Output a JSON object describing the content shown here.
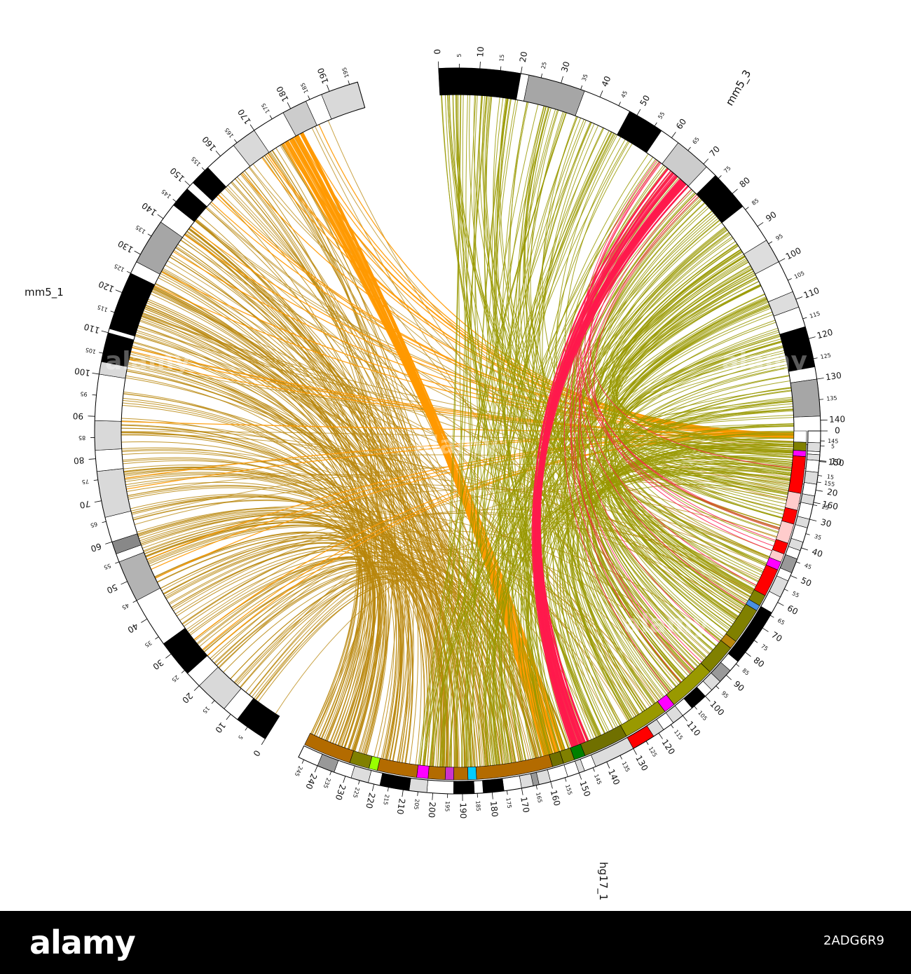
{
  "diagram": {
    "type": "circos-synteny",
    "chromosomes": [
      {
        "id": "mm5_1",
        "label": "mm5_1",
        "start_deg": 212,
        "end_deg": 344,
        "length": 197,
        "major_ticks": [
          0,
          10,
          20,
          30,
          40,
          50,
          60,
          70,
          80,
          90,
          100,
          110,
          120,
          130,
          140,
          150,
          160,
          170,
          180,
          190
        ],
        "minor_ticks": [
          5,
          15,
          25,
          35,
          45,
          55,
          65,
          75,
          85,
          95,
          105,
          115,
          125,
          135,
          145,
          155,
          165,
          175,
          185,
          195
        ],
        "bands": [
          [
            0,
            8,
            "#000000"
          ],
          [
            8,
            12,
            "#ffffff"
          ],
          [
            12,
            20,
            "#d9d9d9"
          ],
          [
            20,
            24,
            "#ffffff"
          ],
          [
            24,
            33,
            "#000000"
          ],
          [
            33,
            45,
            "#ffffff"
          ],
          [
            45,
            55,
            "#b3b3b3"
          ],
          [
            55,
            57,
            "#ffffff"
          ],
          [
            57,
            60,
            "#888888"
          ],
          [
            60,
            66,
            "#ffffff"
          ],
          [
            66,
            77,
            "#d9d9d9"
          ],
          [
            77,
            82,
            "#ffffff"
          ],
          [
            82,
            89,
            "#d9d9d9"
          ],
          [
            89,
            100,
            "#ffffff"
          ],
          [
            100,
            103,
            "#d9d9d9"
          ],
          [
            103,
            110,
            "#000000"
          ],
          [
            110,
            111,
            "#ffffff"
          ],
          [
            111,
            125,
            "#000000"
          ],
          [
            125,
            128,
            "#ffffff"
          ],
          [
            128,
            139,
            "#a6a6a6"
          ],
          [
            139,
            144,
            "#ffffff"
          ],
          [
            144,
            149,
            "#000000"
          ],
          [
            149,
            151,
            "#ffffff"
          ],
          [
            151,
            156,
            "#000000"
          ],
          [
            156,
            164,
            "#ffffff"
          ],
          [
            164,
            170,
            "#d9d9d9"
          ],
          [
            170,
            178,
            "#ffffff"
          ],
          [
            178,
            184,
            "#cccccc"
          ],
          [
            184,
            188,
            "#ffffff"
          ],
          [
            188,
            197,
            "#d9d9d9"
          ]
        ]
      },
      {
        "id": "mm5_3",
        "label": "mm5_3",
        "start_deg": 357,
        "end_deg": 462,
        "length": 161,
        "major_ticks": [
          0,
          10,
          20,
          30,
          40,
          50,
          60,
          70,
          80,
          90,
          100,
          110,
          120,
          130,
          140,
          150,
          160
        ],
        "minor_ticks": [
          5,
          15,
          25,
          35,
          45,
          55,
          65,
          75,
          85,
          95,
          105,
          115,
          125,
          135,
          145,
          155
        ],
        "bands": [
          [
            0,
            20,
            "#000000"
          ],
          [
            20,
            22,
            "#ffffff"
          ],
          [
            22,
            36,
            "#a6a6a6"
          ],
          [
            36,
            48,
            "#ffffff"
          ],
          [
            48,
            57,
            "#000000"
          ],
          [
            57,
            62,
            "#ffffff"
          ],
          [
            62,
            71,
            "#cccccc"
          ],
          [
            71,
            74,
            "#ffffff"
          ],
          [
            74,
            84,
            "#000000"
          ],
          [
            84,
            94,
            "#ffffff"
          ],
          [
            94,
            100,
            "#dddddd"
          ],
          [
            100,
            108,
            "#ffffff"
          ],
          [
            108,
            112,
            "#dddddd"
          ],
          [
            112,
            117,
            "#ffffff"
          ],
          [
            117,
            127,
            "#000000"
          ],
          [
            127,
            130,
            "#ffffff"
          ],
          [
            130,
            139,
            "#a6a6a6"
          ],
          [
            139,
            146,
            "#ffffff"
          ],
          [
            146,
            152,
            "#dddddd"
          ],
          [
            152,
            156,
            "#ffffff"
          ],
          [
            156,
            161,
            "#dddddd"
          ]
        ]
      },
      {
        "id": "hg17_1",
        "label": "hg17_1",
        "start_deg": 90,
        "end_deg": 206,
        "length": 247,
        "major_ticks": [
          0,
          10,
          20,
          30,
          40,
          50,
          60,
          70,
          80,
          90,
          100,
          110,
          120,
          130,
          140,
          150,
          160,
          170,
          180,
          190,
          200,
          210,
          220,
          230,
          240
        ],
        "minor_ticks": [
          5,
          15,
          25,
          35,
          45,
          55,
          65,
          75,
          85,
          95,
          105,
          115,
          125,
          135,
          145,
          155,
          165,
          175,
          185,
          195,
          205,
          215,
          225,
          235,
          245
        ],
        "bands": [
          [
            0,
            4,
            "#ffffff"
          ],
          [
            4,
            7,
            "#dddddd"
          ],
          [
            7,
            8,
            "#ffffff"
          ],
          [
            8,
            10,
            "#dddddd"
          ],
          [
            10,
            14,
            "#ffffff"
          ],
          [
            14,
            18,
            "#dddddd"
          ],
          [
            18,
            22,
            "#ffffff"
          ],
          [
            22,
            25,
            "#dddddd"
          ],
          [
            25,
            30,
            "#ffffff"
          ],
          [
            30,
            33,
            "#dddddd"
          ],
          [
            33,
            38,
            "#ffffff"
          ],
          [
            38,
            41,
            "#dddddd"
          ],
          [
            41,
            44,
            "#ffffff"
          ],
          [
            44,
            49,
            "#999999"
          ],
          [
            49,
            52,
            "#ffffff"
          ],
          [
            52,
            58,
            "#dddddd"
          ],
          [
            58,
            64,
            "#ffffff"
          ],
          [
            64,
            84,
            "#000000"
          ],
          [
            84,
            88,
            "#ffffff"
          ],
          [
            88,
            93,
            "#999999"
          ],
          [
            93,
            97,
            "#dddddd"
          ],
          [
            97,
            100,
            "#ffffff"
          ],
          [
            100,
            106,
            "#000000"
          ],
          [
            106,
            110,
            "#ffffff"
          ],
          [
            110,
            114,
            "#dddddd"
          ],
          [
            114,
            118,
            "#ffffff"
          ],
          [
            118,
            122,
            "#dddddd"
          ],
          [
            122,
            130,
            "#ff0000"
          ],
          [
            130,
            144,
            "#dddddd"
          ],
          [
            144,
            148,
            "#ffffff"
          ],
          [
            148,
            150,
            "#dddddd"
          ],
          [
            150,
            154,
            "#ffffff"
          ],
          [
            154,
            160,
            "#ffffff"
          ],
          [
            160,
            164,
            "#dddddd"
          ],
          [
            164,
            166,
            "#999999"
          ],
          [
            166,
            170,
            "#dddddd"
          ],
          [
            170,
            176,
            "#ffffff"
          ],
          [
            176,
            183,
            "#000000"
          ],
          [
            183,
            186,
            "#ffffff"
          ],
          [
            186,
            193,
            "#000000"
          ],
          [
            193,
            202,
            "#ffffff"
          ],
          [
            202,
            208,
            "#dddddd"
          ],
          [
            208,
            218,
            "#000000"
          ],
          [
            218,
            222,
            "#ffffff"
          ],
          [
            222,
            228,
            "#dddddd"
          ],
          [
            228,
            234,
            "#ffffff"
          ],
          [
            234,
            240,
            "#999999"
          ],
          [
            240,
            247,
            "#ffffff"
          ]
        ],
        "synteny_track": [
          [
            0,
            4,
            "#ffffff"
          ],
          [
            4,
            7,
            "#808000"
          ],
          [
            7,
            9,
            "#ff00ff"
          ],
          [
            9,
            22,
            "#ff0000"
          ],
          [
            22,
            28,
            "#ffcccc"
          ],
          [
            28,
            33,
            "#ff0000"
          ],
          [
            33,
            40,
            "#ffcccc"
          ],
          [
            40,
            44,
            "#ff0000"
          ],
          [
            44,
            47,
            "#ffcccc"
          ],
          [
            47,
            50,
            "#ff00ff"
          ],
          [
            50,
            60,
            "#ff0000"
          ],
          [
            60,
            64,
            "#808000"
          ],
          [
            64,
            66,
            "#4a90e2"
          ],
          [
            66,
            79,
            "#808000"
          ],
          [
            79,
            82,
            "#b8860b"
          ],
          [
            82,
            93,
            "#808000"
          ],
          [
            93,
            110,
            "#999900"
          ],
          [
            110,
            114,
            "#ff00ff"
          ],
          [
            114,
            130,
            "#999900"
          ],
          [
            130,
            146,
            "#707000"
          ],
          [
            146,
            150,
            "#008000"
          ],
          [
            150,
            154,
            "#808000"
          ],
          [
            154,
            158,
            "#707000"
          ],
          [
            158,
            185,
            "#b36b00"
          ],
          [
            185,
            188,
            "#00ccff"
          ],
          [
            188,
            193,
            "#b36b00"
          ],
          [
            193,
            196,
            "#cc33cc"
          ],
          [
            196,
            202,
            "#b36b00"
          ],
          [
            202,
            206,
            "#ff00ff"
          ],
          [
            206,
            220,
            "#b36b00"
          ],
          [
            220,
            223,
            "#99ff00"
          ],
          [
            223,
            230,
            "#808000"
          ],
          [
            230,
            247,
            "#b36b00"
          ]
        ]
      }
    ],
    "link_colors": {
      "mm5_1": "#b8860b",
      "mm5_1_bundle": "#ff9900",
      "mm5_3": "#999900",
      "mm5_3_bundle": "#ff1a4d"
    }
  },
  "watermark": {
    "text": "alamy"
  },
  "footer": {
    "brand": "alamy",
    "image_id": "2ADG6R9"
  }
}
